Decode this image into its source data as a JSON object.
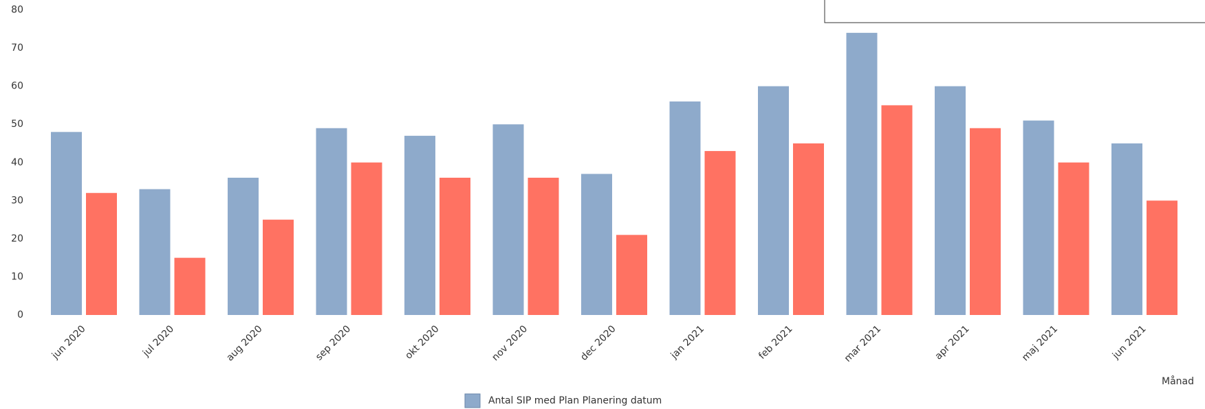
{
  "chart_data": {
    "type": "bar",
    "categories": [
      "jun 2020",
      "jul 2020",
      "aug 2020",
      "sep 2020",
      "okt 2020",
      "nov 2020",
      "dec 2020",
      "jan 2021",
      "feb 2021",
      "mar 2021",
      "apr 2021",
      "maj 2021",
      "jun 2021"
    ],
    "series": [
      {
        "name": "Antal SIP med Plan Planering datum",
        "color": "#8eaacb",
        "values": [
          48,
          33,
          36,
          49,
          47,
          50,
          37,
          56,
          60,
          74,
          60,
          51,
          45
        ]
      },
      {
        "color": "#ff7262",
        "values": [
          32,
          15,
          25,
          40,
          36,
          36,
          21,
          43,
          45,
          55,
          49,
          40,
          30
        ]
      }
    ],
    "x_label": "Månad",
    "ylim": [
      0,
      80
    ],
    "yticks": [
      0,
      10,
      20,
      30,
      40,
      50,
      60,
      70,
      80
    ],
    "grid": false
  }
}
